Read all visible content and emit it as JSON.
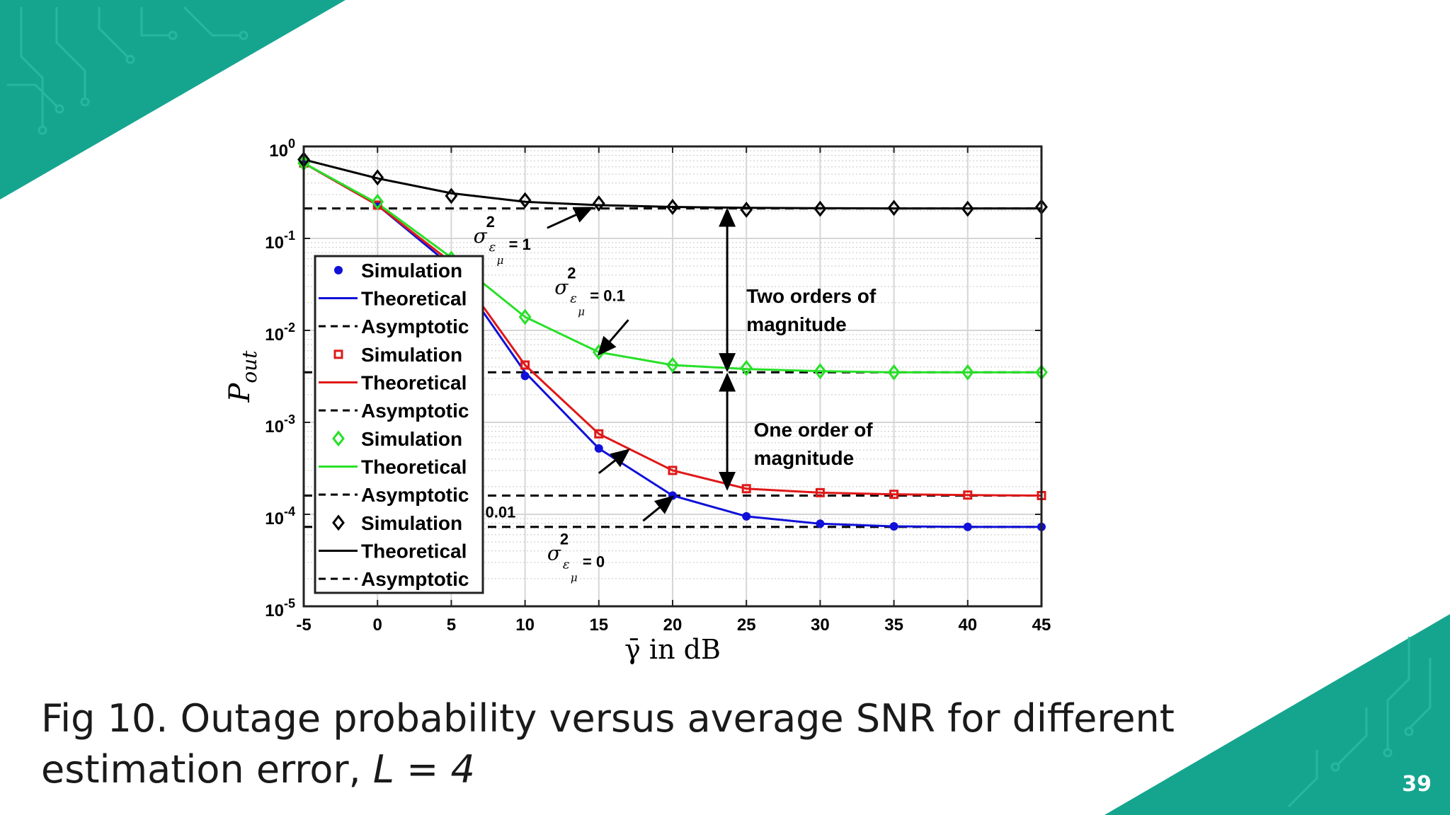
{
  "slide": {
    "caption_text": "Fig 10. Outage probability versus average SNR for different estimation error, ",
    "caption_math": "L = 4",
    "page_number": "39",
    "accent_color": "#15a58f"
  },
  "chart_data": {
    "type": "line",
    "title": "",
    "xlabel": "γ̄ in dB",
    "ylabel": "P_out",
    "ylabel_main": "P",
    "ylabel_sub": "out",
    "x": [
      -5,
      0,
      5,
      10,
      15,
      20,
      25,
      30,
      35,
      40,
      45
    ],
    "xlim": [
      -5,
      45
    ],
    "ylim": [
      1e-05,
      1
    ],
    "yscale": "log",
    "grid": true,
    "legend_position": "left",
    "x_tick_labels": [
      "-5",
      "0",
      "5",
      "10",
      "15",
      "20",
      "25",
      "30",
      "35",
      "40",
      "45"
    ],
    "y_tick_labels": [
      {
        "base": "10",
        "exp": "0"
      },
      {
        "base": "10",
        "exp": "-1"
      },
      {
        "base": "10",
        "exp": "-2"
      },
      {
        "base": "10",
        "exp": "-3"
      },
      {
        "base": "10",
        "exp": "-4"
      },
      {
        "base": "10",
        "exp": "-5"
      }
    ],
    "series": [
      {
        "key": "sigma0",
        "color": "#1010d8",
        "marker": "dot",
        "simulation": [
          0.66,
          0.23,
          0.05,
          0.0032,
          0.00052,
          0.00016,
          9.5e-05,
          7.9e-05,
          7.4e-05,
          7.3e-05,
          7.3e-05
        ],
        "theoretical": [
          0.66,
          0.23,
          0.05,
          0.0035,
          0.00052,
          0.00016,
          9.5e-05,
          7.9e-05,
          7.4e-05,
          7.3e-05,
          7.3e-05
        ],
        "asymptotic": 7.3e-05
      },
      {
        "key": "sigma001",
        "color": "#e01818",
        "marker": "square",
        "simulation": [
          0.66,
          0.23,
          0.055,
          0.0042,
          0.00075,
          0.0003,
          0.00019,
          0.000172,
          0.000165,
          0.000162,
          0.00016
        ],
        "theoretical": [
          0.66,
          0.23,
          0.055,
          0.0042,
          0.00075,
          0.0003,
          0.00019,
          0.000172,
          0.000165,
          0.000162,
          0.00016
        ],
        "asymptotic": 0.00016
      },
      {
        "key": "sigma01",
        "color": "#28e028",
        "marker": "diamond",
        "simulation": [
          0.66,
          0.25,
          0.06,
          0.014,
          0.0058,
          0.0042,
          0.0039,
          0.0036,
          0.0035,
          0.0035,
          0.0035
        ],
        "theoretical": [
          0.66,
          0.24,
          0.062,
          0.014,
          0.0058,
          0.0042,
          0.0038,
          0.0036,
          0.0035,
          0.0035,
          0.0035
        ],
        "asymptotic": 0.0035
      },
      {
        "key": "sigma1",
        "color": "#000000",
        "marker": "diamond",
        "simulation": [
          0.72,
          0.46,
          0.29,
          0.26,
          0.24,
          0.22,
          0.205,
          0.21,
          0.215,
          0.21,
          0.22
        ],
        "theoretical": [
          0.72,
          0.45,
          0.31,
          0.25,
          0.23,
          0.22,
          0.215,
          0.213,
          0.212,
          0.212,
          0.212
        ],
        "asymptotic": 0.212
      }
    ],
    "legend": [
      {
        "label": "Simulation",
        "series": "sigma0",
        "kind": "marker"
      },
      {
        "label": "Theoretical",
        "series": "sigma0",
        "kind": "line"
      },
      {
        "label": "Asymptotic",
        "series": "sigma0",
        "kind": "dash"
      },
      {
        "label": "Simulation",
        "series": "sigma001",
        "kind": "marker"
      },
      {
        "label": "Theoretical",
        "series": "sigma001",
        "kind": "line"
      },
      {
        "label": "Asymptotic",
        "series": "sigma001",
        "kind": "dash"
      },
      {
        "label": "Simulation",
        "series": "sigma01",
        "kind": "marker"
      },
      {
        "label": "Theoretical",
        "series": "sigma01",
        "kind": "line"
      },
      {
        "label": "Asymptotic",
        "series": "sigma01",
        "kind": "dash"
      },
      {
        "label": "Simulation",
        "series": "sigma1",
        "kind": "marker"
      },
      {
        "label": "Theoretical",
        "series": "sigma1",
        "kind": "line"
      },
      {
        "label": "Asymptotic",
        "series": "sigma1",
        "kind": "dash"
      }
    ],
    "sigma_labels": [
      {
        "value": "= 1",
        "x": 6.5,
        "y": 0.09,
        "arrow_from": [
          11.5,
          0.13
        ],
        "arrow_to": [
          14.5,
          0.215
        ]
      },
      {
        "value": "= 0.1",
        "x": 12,
        "y": 0.025,
        "arrow_from": [
          17,
          0.013
        ],
        "arrow_to": [
          15,
          0.0055
        ]
      },
      {
        "value": "= 0.01",
        "x": 4,
        "y": 0.00011,
        "arrow_from": [
          15,
          0.00028
        ],
        "arrow_to": [
          17,
          0.0005
        ]
      },
      {
        "value": "= 0",
        "x": 11.5,
        "y": 3.2e-05,
        "arrow_from": [
          18,
          8.5e-05
        ],
        "arrow_to": [
          20,
          0.000155
        ]
      }
    ],
    "annotations": [
      {
        "lines": [
          "Two orders of",
          "magnitude"
        ],
        "x": 25,
        "y": 0.02,
        "arrow_x": 23.7,
        "from": 0.205,
        "to": 0.0037
      },
      {
        "lines": [
          "One order of",
          "magnitude"
        ],
        "x": 25.5,
        "y": 0.0007,
        "arrow_x": 23.7,
        "from": 0.0033,
        "to": 0.00019
      }
    ]
  }
}
